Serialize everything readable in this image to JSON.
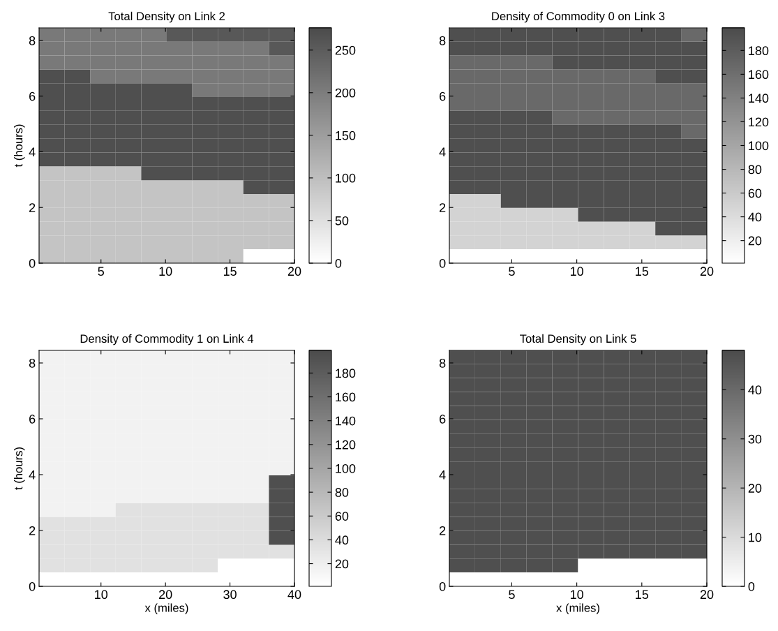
{
  "chart_data": [
    {
      "type": "heatmap",
      "title": "Total Density on Link 2",
      "ylabel": "t (hours)",
      "colors": [
        "#ffffff",
        "#4b4b4b"
      ],
      "x": [
        1.19,
        3.17,
        5.15,
        7.13,
        9.11,
        11.09,
        13.07,
        15.05,
        17.03,
        19.01
      ],
      "y": [
        8.2,
        7.71,
        7.21,
        6.71,
        6.21,
        5.72,
        5.22,
        4.72,
        4.22,
        3.73,
        3.23,
        2.73,
        2.24,
        1.74,
        1.24,
        0.75,
        0.25
      ],
      "xlim": [
        0.2,
        20
      ],
      "xticks": [
        5,
        10,
        15,
        20
      ],
      "ylim": [
        0,
        8.45
      ],
      "yticks": [
        0,
        2,
        4,
        6,
        8
      ],
      "clim": [
        0,
        276
      ],
      "cticks": [
        0,
        50,
        100,
        150,
        200,
        250
      ],
      "cells": [
        [
          205,
          205,
          205,
          205,
          205,
          255,
          255,
          255,
          255,
          255
        ],
        [
          205,
          205,
          205,
          205,
          205,
          205,
          205,
          205,
          205,
          255
        ],
        [
          205,
          205,
          205,
          205,
          205,
          205,
          205,
          205,
          205,
          205
        ],
        [
          270,
          270,
          205,
          205,
          205,
          205,
          205,
          205,
          205,
          205
        ],
        [
          270,
          270,
          270,
          270,
          270,
          270,
          205,
          205,
          205,
          205
        ],
        [
          270,
          270,
          270,
          270,
          270,
          270,
          270,
          270,
          270,
          270
        ],
        [
          270,
          270,
          270,
          270,
          270,
          270,
          270,
          270,
          270,
          270
        ],
        [
          270,
          270,
          270,
          270,
          270,
          270,
          270,
          270,
          270,
          270
        ],
        [
          270,
          270,
          270,
          270,
          270,
          270,
          270,
          270,
          270,
          270
        ],
        [
          270,
          270,
          270,
          270,
          270,
          270,
          270,
          270,
          270,
          270
        ],
        [
          90,
          90,
          90,
          90,
          270,
          270,
          270,
          270,
          270,
          270
        ],
        [
          90,
          90,
          90,
          90,
          90,
          90,
          90,
          90,
          270,
          270
        ],
        [
          90,
          90,
          90,
          90,
          90,
          90,
          90,
          90,
          90,
          90
        ],
        [
          90,
          90,
          90,
          90,
          90,
          90,
          90,
          90,
          90,
          90
        ],
        [
          90,
          90,
          90,
          90,
          90,
          90,
          90,
          90,
          90,
          90
        ],
        [
          90,
          90,
          90,
          90,
          90,
          90,
          90,
          90,
          90,
          90
        ],
        [
          90,
          90,
          90,
          90,
          90,
          90,
          90,
          90,
          0,
          0
        ]
      ]
    },
    {
      "type": "heatmap",
      "title": "Density of Commodity 0 on Link 3",
      "colors": [
        "#ffffff",
        "#4b4b4b"
      ],
      "x": [
        1.19,
        3.17,
        5.15,
        7.13,
        9.11,
        11.09,
        13.07,
        15.05,
        17.03,
        19.01
      ],
      "y": [
        8.2,
        7.71,
        7.21,
        6.71,
        6.21,
        5.72,
        5.22,
        4.72,
        4.22,
        3.73,
        3.23,
        2.73,
        2.24,
        1.74,
        1.24,
        0.75,
        0.25
      ],
      "xlim": [
        0.2,
        20
      ],
      "xticks": [
        5,
        10,
        15,
        20
      ],
      "ylim": [
        0,
        8.45
      ],
      "yticks": [
        0,
        2,
        4,
        6,
        8
      ],
      "clim": [
        1,
        199
      ],
      "cticks": [
        20,
        40,
        60,
        80,
        100,
        120,
        140,
        160,
        180
      ],
      "cells": [
        [
          195,
          195,
          195,
          195,
          195,
          195,
          195,
          195,
          195,
          165
        ],
        [
          195,
          195,
          195,
          195,
          195,
          195,
          195,
          195,
          195,
          195
        ],
        [
          165,
          165,
          165,
          165,
          195,
          195,
          195,
          195,
          195,
          195
        ],
        [
          165,
          165,
          165,
          165,
          165,
          165,
          165,
          165,
          195,
          195
        ],
        [
          165,
          165,
          165,
          165,
          165,
          165,
          165,
          165,
          165,
          165
        ],
        [
          165,
          165,
          165,
          165,
          165,
          165,
          165,
          165,
          165,
          165
        ],
        [
          195,
          195,
          195,
          195,
          165,
          165,
          165,
          165,
          165,
          165
        ],
        [
          195,
          195,
          195,
          195,
          195,
          195,
          195,
          195,
          195,
          165
        ],
        [
          195,
          195,
          195,
          195,
          195,
          195,
          195,
          195,
          195,
          195
        ],
        [
          195,
          195,
          195,
          195,
          195,
          195,
          195,
          195,
          195,
          195
        ],
        [
          195,
          195,
          195,
          195,
          195,
          195,
          195,
          195,
          195,
          195
        ],
        [
          195,
          195,
          195,
          195,
          195,
          195,
          195,
          195,
          195,
          195
        ],
        [
          50,
          50,
          195,
          195,
          195,
          195,
          195,
          195,
          195,
          195
        ],
        [
          50,
          50,
          50,
          50,
          50,
          195,
          195,
          195,
          195,
          195
        ],
        [
          50,
          50,
          50,
          50,
          50,
          50,
          50,
          50,
          195,
          195
        ],
        [
          50,
          50,
          50,
          50,
          50,
          50,
          50,
          50,
          50,
          50
        ],
        [
          1,
          1,
          1,
          1,
          1,
          1,
          1,
          1,
          1,
          1
        ]
      ]
    },
    {
      "type": "heatmap",
      "title": "Density of Commodity 1 on Link 4",
      "xlabel": "x (miles)",
      "ylabel": "t (hours)",
      "colors": [
        "#ffffff",
        "#4b4b4b"
      ],
      "x": [
        2.38,
        6.34,
        10.3,
        14.26,
        18.22,
        22.18,
        26.14,
        30.1,
        34.06,
        38.02
      ],
      "y": [
        8.2,
        7.71,
        7.21,
        6.71,
        6.21,
        5.72,
        5.22,
        4.72,
        4.22,
        3.73,
        3.23,
        2.73,
        2.24,
        1.74,
        1.24,
        0.75,
        0.25
      ],
      "xlim": [
        0.4,
        40
      ],
      "xticks": [
        10,
        20,
        30,
        40
      ],
      "ylim": [
        0,
        8.45
      ],
      "yticks": [
        0,
        2,
        4,
        6,
        8
      ],
      "clim": [
        1,
        199
      ],
      "cticks": [
        20,
        40,
        60,
        80,
        100,
        120,
        140,
        160,
        180
      ],
      "cells": [
        [
          15,
          15,
          15,
          15,
          15,
          15,
          15,
          15,
          15,
          15
        ],
        [
          15,
          15,
          15,
          15,
          15,
          15,
          15,
          15,
          15,
          15
        ],
        [
          15,
          15,
          15,
          15,
          15,
          15,
          15,
          15,
          15,
          15
        ],
        [
          15,
          15,
          15,
          15,
          15,
          15,
          15,
          15,
          15,
          15
        ],
        [
          15,
          15,
          15,
          15,
          15,
          15,
          15,
          15,
          15,
          15
        ],
        [
          15,
          15,
          15,
          15,
          15,
          15,
          15,
          15,
          15,
          15
        ],
        [
          15,
          15,
          15,
          15,
          15,
          15,
          15,
          15,
          15,
          15
        ],
        [
          15,
          15,
          15,
          15,
          15,
          15,
          15,
          15,
          15,
          15
        ],
        [
          15,
          15,
          15,
          15,
          15,
          15,
          15,
          15,
          15,
          15
        ],
        [
          15,
          15,
          15,
          15,
          15,
          15,
          15,
          15,
          15,
          195
        ],
        [
          15,
          15,
          15,
          15,
          15,
          15,
          15,
          15,
          15,
          195
        ],
        [
          15,
          15,
          15,
          35,
          35,
          35,
          35,
          35,
          35,
          195
        ],
        [
          35,
          35,
          35,
          35,
          35,
          35,
          35,
          35,
          35,
          195
        ],
        [
          35,
          35,
          35,
          35,
          35,
          35,
          35,
          35,
          35,
          195
        ],
        [
          35,
          35,
          35,
          35,
          35,
          35,
          35,
          35,
          35,
          35
        ],
        [
          35,
          35,
          35,
          35,
          35,
          35,
          35,
          1,
          1,
          1
        ],
        [
          1,
          1,
          1,
          1,
          1,
          1,
          1,
          1,
          1,
          1
        ]
      ]
    },
    {
      "type": "heatmap",
      "title": "Total Density on Link 5",
      "xlabel": "x (miles)",
      "colors": [
        "#ffffff",
        "#4b4b4b"
      ],
      "x": [
        1.19,
        3.17,
        5.15,
        7.13,
        9.11,
        11.09,
        13.07,
        15.05,
        17.03,
        19.01
      ],
      "y": [
        8.2,
        7.71,
        7.21,
        6.71,
        6.21,
        5.72,
        5.22,
        4.72,
        4.22,
        3.73,
        3.23,
        2.73,
        2.24,
        1.74,
        1.24,
        0.75,
        0.25
      ],
      "xlim": [
        0.2,
        20
      ],
      "xticks": [
        5,
        10,
        15,
        20
      ],
      "ylim": [
        0,
        8.45
      ],
      "yticks": [
        0,
        2,
        4,
        6,
        8
      ],
      "clim": [
        0,
        48
      ],
      "cticks": [
        0,
        10,
        20,
        30,
        40
      ],
      "cells": [
        [
          47,
          47,
          47,
          47,
          47,
          47,
          47,
          47,
          47,
          47
        ],
        [
          47,
          47,
          47,
          47,
          47,
          47,
          47,
          47,
          47,
          47
        ],
        [
          47,
          47,
          47,
          47,
          47,
          47,
          47,
          47,
          47,
          47
        ],
        [
          47,
          47,
          47,
          47,
          47,
          47,
          47,
          47,
          47,
          47
        ],
        [
          47,
          47,
          47,
          47,
          47,
          47,
          47,
          47,
          47,
          47
        ],
        [
          47,
          47,
          47,
          47,
          47,
          47,
          47,
          47,
          47,
          47
        ],
        [
          47,
          47,
          47,
          47,
          47,
          47,
          47,
          47,
          47,
          47
        ],
        [
          47,
          47,
          47,
          47,
          47,
          47,
          47,
          47,
          47,
          47
        ],
        [
          47,
          47,
          47,
          47,
          47,
          47,
          47,
          47,
          47,
          47
        ],
        [
          47,
          47,
          47,
          47,
          47,
          47,
          47,
          47,
          47,
          47
        ],
        [
          47,
          47,
          47,
          47,
          47,
          47,
          47,
          47,
          47,
          47
        ],
        [
          47,
          47,
          47,
          47,
          47,
          47,
          47,
          47,
          47,
          47
        ],
        [
          47,
          47,
          47,
          47,
          47,
          47,
          47,
          47,
          47,
          47
        ],
        [
          47,
          47,
          47,
          47,
          47,
          47,
          47,
          47,
          47,
          47
        ],
        [
          47,
          47,
          47,
          47,
          47,
          47,
          47,
          47,
          47,
          47
        ],
        [
          47,
          47,
          47,
          47,
          47,
          0,
          0,
          0,
          0,
          0
        ],
        [
          0,
          0,
          0,
          0,
          0,
          0,
          0,
          0,
          0,
          0
        ]
      ]
    }
  ]
}
